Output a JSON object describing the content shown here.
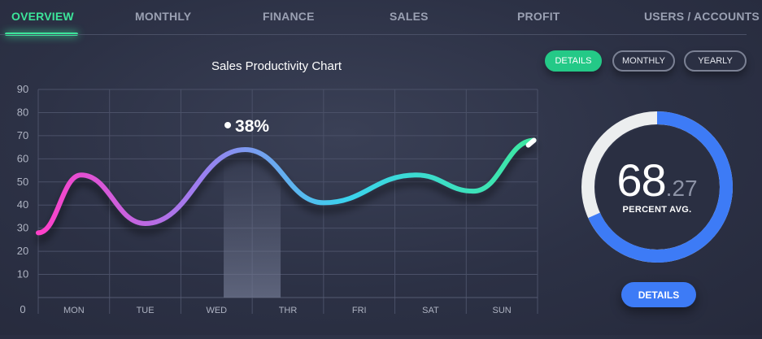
{
  "tabs": [
    {
      "label": "OVERVIEW",
      "active": true
    },
    {
      "label": "MONTHLY",
      "active": false
    },
    {
      "label": "FINANCE",
      "active": false
    },
    {
      "label": "SALES",
      "active": false
    },
    {
      "label": "PROFIT",
      "active": false
    },
    {
      "label": "USERS / ACCOUNTS",
      "active": false
    }
  ],
  "chart_data": {
    "type": "line",
    "title": "Sales Productivity Chart",
    "categories": [
      "MON",
      "TUE",
      "WED",
      "THR",
      "FRI",
      "SAT",
      "SUN"
    ],
    "y_ticks": [
      0,
      10,
      20,
      30,
      40,
      50,
      60,
      70,
      80,
      90
    ],
    "ylim": [
      0,
      90
    ],
    "points": [
      {
        "x": -0.5,
        "y": 28
      },
      {
        "x": 0.1,
        "y": 53
      },
      {
        "x": 1.0,
        "y": 32
      },
      {
        "x": 2.4,
        "y": 64
      },
      {
        "x": 3.5,
        "y": 41
      },
      {
        "x": 4.8,
        "y": 53
      },
      {
        "x": 5.6,
        "y": 46
      },
      {
        "x": 6.45,
        "y": 68
      }
    ],
    "highlight": {
      "category": "WED",
      "label": "38%"
    },
    "grid": true,
    "colors": [
      "#ff3fc8",
      "#9b7ff0",
      "#3ad3ef",
      "#3de8a0"
    ]
  },
  "controls": {
    "details_label": "DETAILS",
    "monthly_label": "MONTHLY",
    "yearly_label": "YEARLY"
  },
  "gauge": {
    "value": 68.27,
    "int_text": "68",
    "dec_text": ".27",
    "label": "PERCENT AVG.",
    "accent_color": "#3d7bf6",
    "track_color": "#eceeef"
  },
  "bottom_button": {
    "label": "DETAILS"
  }
}
